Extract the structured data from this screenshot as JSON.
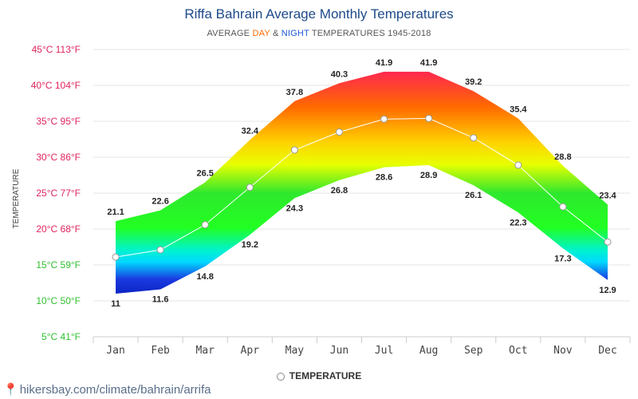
{
  "chart_data": {
    "type": "area",
    "title": "Riffa Bahrain Average Monthly Temperatures",
    "subtitle_parts": {
      "pre": "AVERAGE ",
      "day": "DAY",
      "mid": " & ",
      "night": "NIGHT",
      "post": " TEMPERATURES 1945-2018"
    },
    "ylabel": "TEMPERATURE",
    "ylim": [
      5,
      45
    ],
    "y_ticks": [
      {
        "value": 45,
        "label": "45°C 113°F"
      },
      {
        "value": 40,
        "label": "40°C 104°F"
      },
      {
        "value": 35,
        "label": "35°C 95°F"
      },
      {
        "value": 30,
        "label": "30°C 86°F"
      },
      {
        "value": 25,
        "label": "25°C 77°F"
      },
      {
        "value": 20,
        "label": "20°C 68°F"
      },
      {
        "value": 15,
        "label": "15°C 59°F"
      },
      {
        "value": 10,
        "label": "10°C 50°F"
      },
      {
        "value": 5,
        "label": "5°C 41°F"
      }
    ],
    "categories": [
      "Jan",
      "Feb",
      "Mar",
      "Apr",
      "May",
      "Jun",
      "Jul",
      "Aug",
      "Sep",
      "Oct",
      "Nov",
      "Dec"
    ],
    "day": [
      21.1,
      22.6,
      26.5,
      32.4,
      37.8,
      40.3,
      41.9,
      41.9,
      39.2,
      35.4,
      28.8,
      23.4
    ],
    "night": [
      11,
      11.6,
      14.8,
      19.2,
      24.3,
      26.8,
      28.6,
      28.9,
      26.1,
      22.3,
      17.3,
      12.9
    ],
    "series": [
      {
        "name": "TEMPERATURE",
        "values": [
          16.1,
          17.1,
          20.6,
          25.8,
          31.0,
          33.5,
          35.3,
          35.4,
          32.7,
          28.9,
          23.1,
          18.2
        ]
      }
    ],
    "legend_position": "bottom",
    "grid": true
  },
  "tick_colors": {
    "45": "#e0245e",
    "40": "#e0245e",
    "35": "#e0245e",
    "30": "#e0245e",
    "25": "#e0245e",
    "20": "#e0245e",
    "15": "#2fbf2f",
    "10": "#2fbf2f",
    "5": "#2fbf2f"
  },
  "footer": {
    "text": "hikersbay.com/climate/bahrain/arrifa"
  }
}
